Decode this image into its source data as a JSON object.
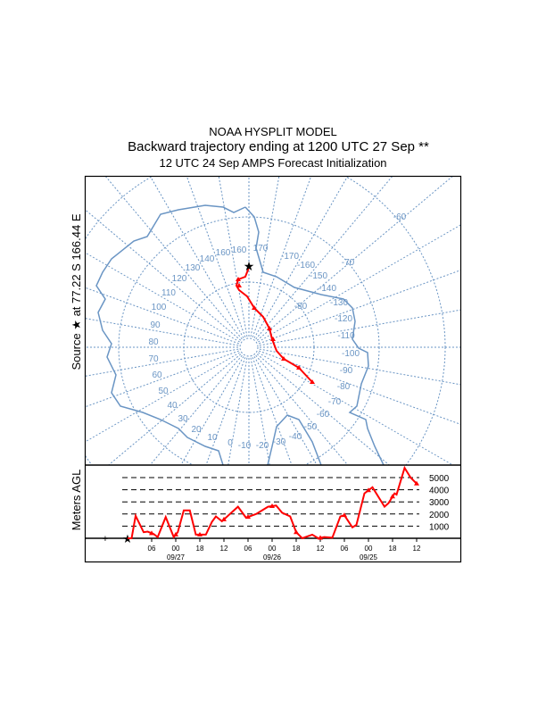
{
  "header": {
    "model": "NOAA HYSPLIT MODEL",
    "title": "Backward trajectory ending at 1200 UTC 27 Sep **",
    "subtitle": "12 UTC 24 Sep    AMPS  Forecast Initialization"
  },
  "source_label": "Source ★ at  77.22 S  166.44 E",
  "colors": {
    "trajectory": "#ff0000",
    "map": "#6a95c4",
    "frame": "#000000"
  },
  "chart_data": [
    {
      "type": "map-trajectory",
      "projection": "polar-stereographic (south pole)",
      "meridian_labels": [
        "-60",
        "160",
        "160",
        "170",
        "140",
        "130",
        "120",
        "110",
        "100",
        "90",
        "80",
        "70",
        "60",
        "50",
        "40",
        "30",
        "20",
        "10",
        "0",
        "-10",
        "-20",
        "-30",
        "-40",
        "-50",
        "-60",
        "-70",
        "-80",
        "-90",
        "-100",
        "-110",
        "-120",
        "-130",
        "-140",
        "-150",
        "-160",
        "-170",
        "-70",
        "-80"
      ],
      "source": {
        "lat": -77.22,
        "lon": 166.44
      }
    },
    {
      "type": "line",
      "ylabel": "Meters AGL",
      "y_ticks": [
        "5000",
        "4000",
        "3000",
        "2000",
        "1000"
      ],
      "y_values": [
        5000,
        4000,
        3000,
        2000,
        1000
      ],
      "x_ticks": [
        "06",
        "00",
        "18",
        "12",
        "06",
        "00",
        "18",
        "12",
        "06",
        "00",
        "18",
        "12"
      ],
      "x_tick_hours_back": [
        6,
        12,
        18,
        24,
        30,
        36,
        42,
        48,
        54,
        60,
        66,
        72
      ],
      "date_labels": [
        "09/27",
        "09/26",
        "09/25"
      ],
      "date_hours_back": [
        12,
        36,
        60
      ],
      "ylim": [
        0,
        5800
      ],
      "xlim_hours_back": [
        0,
        72
      ],
      "series": [
        {
          "name": "trajectory height",
          "hours_back": [
            0,
            1,
            2,
            4,
            5,
            6.5,
            7.5,
            9.5,
            11.5,
            12.5,
            14,
            15.5,
            17,
            19.5,
            21,
            22,
            23.5,
            25.5,
            27.5,
            29.5,
            32,
            35,
            37,
            38.5,
            40.5,
            42,
            43.5,
            46,
            47.5,
            49,
            51,
            53,
            54,
            56,
            57,
            59,
            61,
            64,
            65,
            66.5,
            67,
            69,
            70.5,
            72
          ],
          "height_m": [
            0,
            0,
            1850,
            500,
            550,
            350,
            100,
            1750,
            100,
            500,
            2300,
            2300,
            300,
            300,
            1350,
            1800,
            1400,
            2000,
            2600,
            1700,
            2000,
            2600,
            2700,
            2100,
            1800,
            500,
            0,
            300,
            0,
            100,
            50,
            1800,
            1900,
            900,
            1100,
            3700,
            4200,
            2600,
            2900,
            3700,
            3600,
            5800,
            5000,
            4500
          ]
        }
      ]
    }
  ]
}
